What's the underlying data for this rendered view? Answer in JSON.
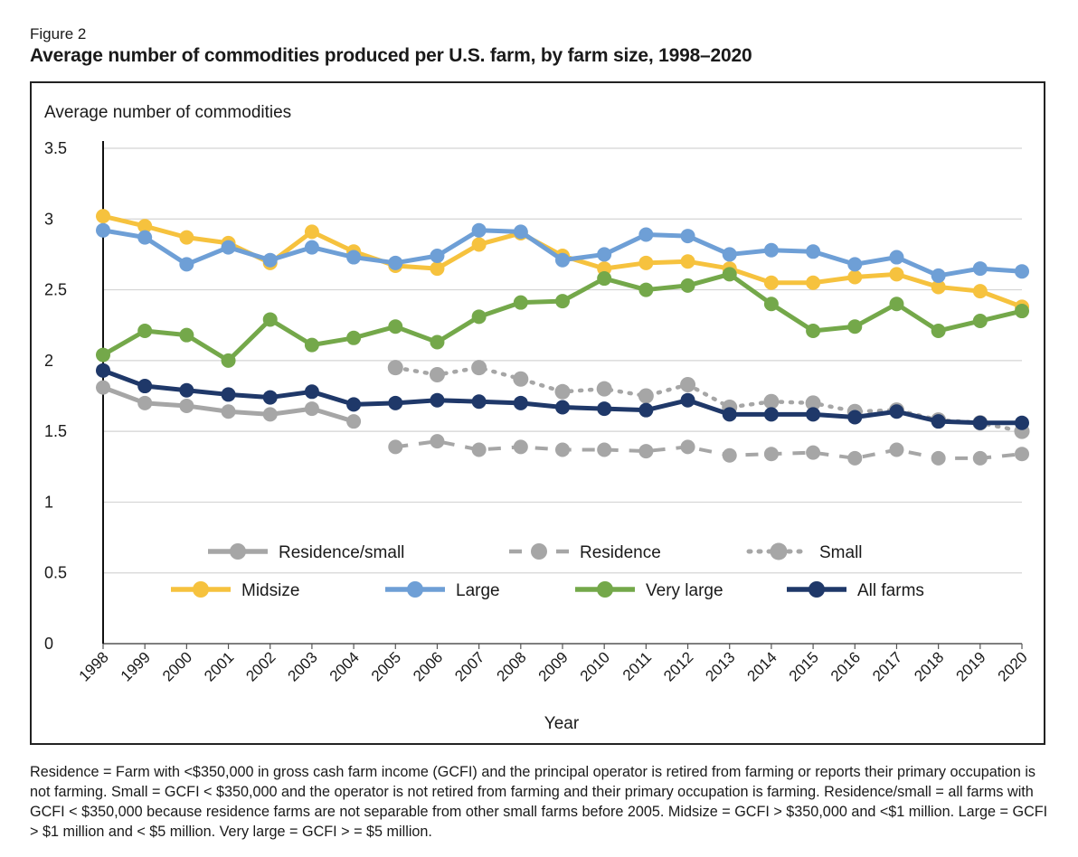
{
  "figure": {
    "label": "Figure 2",
    "title": "Average number of commodities produced per U.S. farm, by farm size, 1998–2020"
  },
  "footnote": "Residence = Farm with <$350,000 in gross cash farm income (GCFI) and the principal operator is retired from farming or reports their primary occupation is not farming. Small = GCFI < $350,000 and the operator is not retired from farming and their primary occupation is farming. Residence/small = all farms with GCFI < $350,000 because residence farms are not separable from other small farms before 2005. Midsize = GCFI > $350,000 and <$1 million. Large = GCFI > $1 million and < $5 million. Very large = GCFI > = $5 million.",
  "chart_data": {
    "type": "line",
    "title": "",
    "ylabel": "Average number of commodities",
    "xlabel": "Year",
    "ylim": [
      0,
      3.5
    ],
    "yticks": [
      "0",
      "0.5",
      "1",
      "1.5",
      "2",
      "2.5",
      "3",
      "3.5"
    ],
    "grid": true,
    "legend_position": "lower-center, inside plot",
    "x": [
      "1998",
      "1999",
      "2000",
      "2001",
      "2002",
      "2003",
      "2004",
      "2005",
      "2006",
      "2007",
      "2008",
      "2009",
      "2010",
      "2011",
      "2012",
      "2013",
      "2014",
      "2015",
      "2016",
      "2017",
      "2018",
      "2019",
      "2020"
    ],
    "series": [
      {
        "name": "Residence/small",
        "color": "#a6a6a6",
        "style": "solid",
        "values": [
          1.81,
          1.7,
          1.68,
          1.64,
          1.62,
          1.66,
          1.57,
          null,
          null,
          null,
          null,
          null,
          null,
          null,
          null,
          null,
          null,
          null,
          null,
          null,
          null,
          null,
          null
        ]
      },
      {
        "name": "Residence",
        "color": "#a6a6a6",
        "style": "dashed",
        "values": [
          null,
          null,
          null,
          null,
          null,
          null,
          null,
          1.39,
          1.43,
          1.37,
          1.39,
          1.37,
          1.37,
          1.36,
          1.39,
          1.33,
          1.34,
          1.35,
          1.31,
          1.37,
          1.31,
          1.31,
          1.34
        ]
      },
      {
        "name": "Small",
        "color": "#a6a6a6",
        "style": "dotted",
        "values": [
          null,
          null,
          null,
          null,
          null,
          null,
          null,
          1.95,
          1.9,
          1.95,
          1.87,
          1.78,
          1.8,
          1.75,
          1.83,
          1.67,
          1.71,
          1.7,
          1.64,
          1.65,
          1.58,
          1.56,
          1.5
        ]
      },
      {
        "name": "Midsize",
        "color": "#f6c23e",
        "style": "solid",
        "values": [
          3.02,
          2.95,
          2.87,
          2.83,
          2.69,
          2.91,
          2.77,
          2.67,
          2.65,
          2.82,
          2.9,
          2.74,
          2.65,
          2.69,
          2.7,
          2.65,
          2.55,
          2.55,
          2.59,
          2.61,
          2.52,
          2.49,
          2.38
        ]
      },
      {
        "name": "Large",
        "color": "#6e9fd6",
        "style": "solid",
        "values": [
          2.92,
          2.87,
          2.68,
          2.8,
          2.71,
          2.8,
          2.73,
          2.69,
          2.74,
          2.92,
          2.91,
          2.71,
          2.75,
          2.89,
          2.88,
          2.75,
          2.78,
          2.77,
          2.68,
          2.73,
          2.6,
          2.65,
          2.63
        ]
      },
      {
        "name": "Very large",
        "color": "#74a84a",
        "style": "solid",
        "values": [
          2.04,
          2.21,
          2.18,
          2.0,
          2.29,
          2.11,
          2.16,
          2.24,
          2.13,
          2.31,
          2.41,
          2.42,
          2.58,
          2.5,
          2.53,
          2.61,
          2.4,
          2.21,
          2.24,
          2.4,
          2.21,
          2.28,
          2.35
        ]
      },
      {
        "name": "All farms",
        "color": "#1f3869",
        "style": "solid",
        "values": [
          1.93,
          1.82,
          1.79,
          1.76,
          1.74,
          1.78,
          1.69,
          1.7,
          1.72,
          1.71,
          1.7,
          1.67,
          1.66,
          1.65,
          1.72,
          1.62,
          1.62,
          1.62,
          1.6,
          1.64,
          1.57,
          1.56,
          1.56
        ]
      }
    ],
    "legend_rows": [
      [
        "Residence/small",
        "Residence",
        "Small"
      ],
      [
        "Midsize",
        "Large",
        "Very large",
        "All farms"
      ]
    ]
  }
}
